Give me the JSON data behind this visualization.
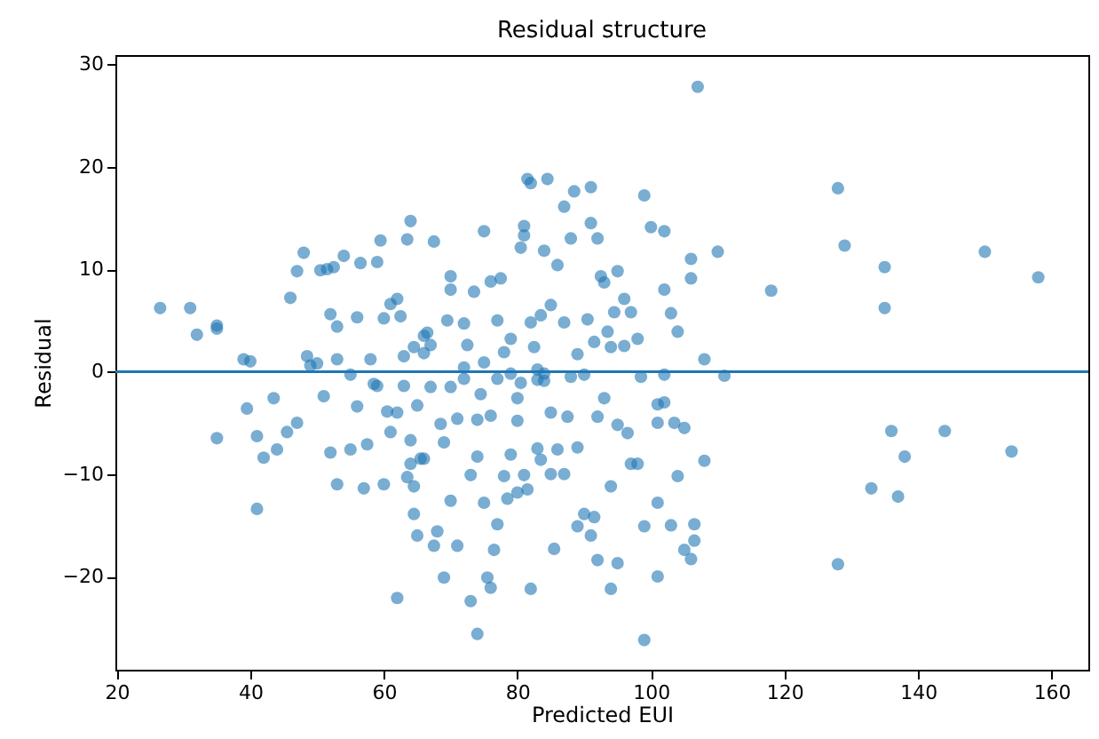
{
  "chart_data": {
    "type": "scatter",
    "title": "Residual structure",
    "xlabel": "Predicted EUI",
    "ylabel": "Residual",
    "xlim": [
      19.8,
      165.5
    ],
    "ylim": [
      -29.1,
      30.9
    ],
    "xticks": [
      20,
      40,
      60,
      80,
      100,
      120,
      140,
      160
    ],
    "yticks": [
      -20,
      -10,
      0,
      10,
      20,
      30
    ],
    "grid": false,
    "marker": "circle",
    "ref_lines": [
      {
        "axis": "y",
        "value": 0,
        "color": "#1f77b4"
      }
    ],
    "series": [
      {
        "color": "#1f77b4",
        "x": [
          26.5,
          31,
          32,
          35,
          35,
          39,
          40,
          39.5,
          41,
          41,
          35,
          42,
          43.5,
          44,
          45.5,
          46,
          47,
          47,
          48,
          48.5,
          49,
          50,
          50.5,
          51,
          51.5,
          52,
          52,
          52.5,
          53,
          53,
          53,
          54,
          55,
          55,
          56,
          56,
          56.5,
          57,
          57.5,
          58,
          58.5,
          59,
          59,
          59.5,
          60,
          60,
          60.5,
          61,
          61,
          62,
          62,
          62,
          62.5,
          63,
          63,
          63.5,
          63.5,
          64,
          64,
          64,
          64.5,
          64.5,
          64.5,
          65,
          65,
          65.5,
          66,
          66,
          66,
          66.5,
          67,
          67,
          67.5,
          67.5,
          68,
          68.5,
          69,
          69,
          69.5,
          70,
          70,
          70,
          70,
          71,
          71,
          72,
          72,
          72,
          72.5,
          73,
          73,
          73.5,
          74,
          74,
          74,
          74.5,
          75,
          75,
          75,
          75.5,
          76,
          76,
          76,
          76.5,
          77,
          77,
          77,
          77.5,
          78,
          78,
          78.5,
          79,
          79,
          79,
          80,
          80,
          80,
          80.5,
          80.5,
          81,
          81,
          81,
          81.5,
          81.5,
          82,
          82,
          82,
          82.5,
          83,
          83,
          83,
          83.5,
          83.5,
          84,
          84,
          84,
          84.5,
          85,
          85,
          85,
          85.5,
          86,
          86,
          87,
          87,
          87,
          87.5,
          88,
          88,
          88.5,
          89,
          89,
          89,
          90,
          90,
          90.5,
          91,
          91,
          91,
          91.5,
          91.5,
          92,
          92,
          92,
          92.5,
          93,
          93,
          93.5,
          94,
          94,
          94,
          94.5,
          95,
          95,
          95,
          96,
          96,
          96.5,
          97,
          97,
          98,
          98,
          98.5,
          99,
          99,
          99,
          100,
          101,
          101,
          101,
          101,
          102,
          102,
          102,
          102,
          103,
          103,
          103.5,
          104,
          104,
          105,
          105,
          106,
          106,
          106,
          106.5,
          106.5,
          107,
          108,
          108,
          110,
          111,
          118,
          128,
          128,
          129,
          133,
          135,
          135,
          136,
          137,
          138,
          144,
          150,
          154,
          158
        ],
        "values": [
          6.2,
          6.2,
          3.6,
          4.5,
          4.2,
          1.2,
          1.0,
          -3.6,
          -6.3,
          -13.4,
          -6.5,
          -8.4,
          -2.6,
          -7.6,
          -5.9,
          7.2,
          -5.0,
          9.8,
          11.6,
          1.5,
          0.6,
          0.8,
          9.9,
          -2.4,
          10,
          5.6,
          -7.9,
          10.2,
          4.4,
          -11,
          1.2,
          11.3,
          -0.3,
          -7.6,
          -3.4,
          5.3,
          10.6,
          -11.4,
          -7.1,
          1.2,
          -1.2,
          -1.4,
          10.7,
          12.8,
          5.2,
          -11,
          -3.9,
          -5.9,
          6.6,
          -4.0,
          7.1,
          -22.1,
          5.4,
          1.5,
          -1.4,
          -10.3,
          12.9,
          14.7,
          -6.7,
          -9,
          -11.2,
          -13.9,
          2.4,
          -3.3,
          -16,
          -8.5,
          3.5,
          -8.5,
          1.8,
          3.8,
          -1.5,
          2.6,
          12.7,
          -17,
          -15.6,
          -5.1,
          -20.1,
          -6.9,
          5.0,
          8.0,
          -1.5,
          -12.6,
          9.3,
          -17,
          -4.6,
          0.4,
          -0.7,
          4.7,
          2.6,
          -22.4,
          -10.1,
          7.8,
          -4.7,
          -8.3,
          -25.6,
          -2.2,
          0.9,
          -12.8,
          13.7,
          -20.1,
          -4.3,
          8.8,
          -21.1,
          -17.4,
          -0.7,
          -14.9,
          5.0,
          9.1,
          -10.2,
          1.9,
          -12.4,
          -8.1,
          -0.2,
          3.2,
          -4.8,
          -11.8,
          -2.6,
          12.1,
          -1.1,
          13.3,
          -10.1,
          14.2,
          18.8,
          -11.5,
          18.4,
          -21.2,
          4.8,
          2.4,
          -7.5,
          0.2,
          -0.8,
          -8.6,
          5.5,
          -0.9,
          -0.2,
          11.8,
          18.8,
          -4.0,
          -10,
          6.5,
          -17.3,
          -7.6,
          10.4,
          -10,
          4.8,
          16.1,
          -4.4,
          13.0,
          -0.5,
          17.6,
          -7.4,
          1.7,
          -15.1,
          -13.9,
          -0.3,
          5.1,
          -16,
          14.5,
          18,
          2.9,
          -14.2,
          13,
          -18.4,
          -4.4,
          9.3,
          8.7,
          -2.6,
          3.9,
          -21.2,
          -11.2,
          2.4,
          5.8,
          -5.2,
          9.8,
          -18.7,
          2.5,
          7.1,
          -6,
          -9,
          5.8,
          -9,
          3.2,
          -0.5,
          17.2,
          -15.1,
          -26.2,
          14.1,
          -3.2,
          -5.0,
          -20,
          -12.8,
          -0.3,
          -3,
          8,
          13.7,
          5.7,
          -15,
          -5,
          -10.2,
          3.9,
          -17.4,
          -5.5,
          9.1,
          11,
          -18.3,
          -14.9,
          -16.5,
          27.8,
          -8.7,
          1.2,
          11.7,
          -0.4,
          7.9,
          17.9,
          -18.8,
          12.3,
          -11.4,
          10.2,
          6.2,
          -5.8,
          -12.2,
          -8.3,
          -5.8,
          11.7,
          -7.8,
          9.2
        ]
      }
    ]
  }
}
